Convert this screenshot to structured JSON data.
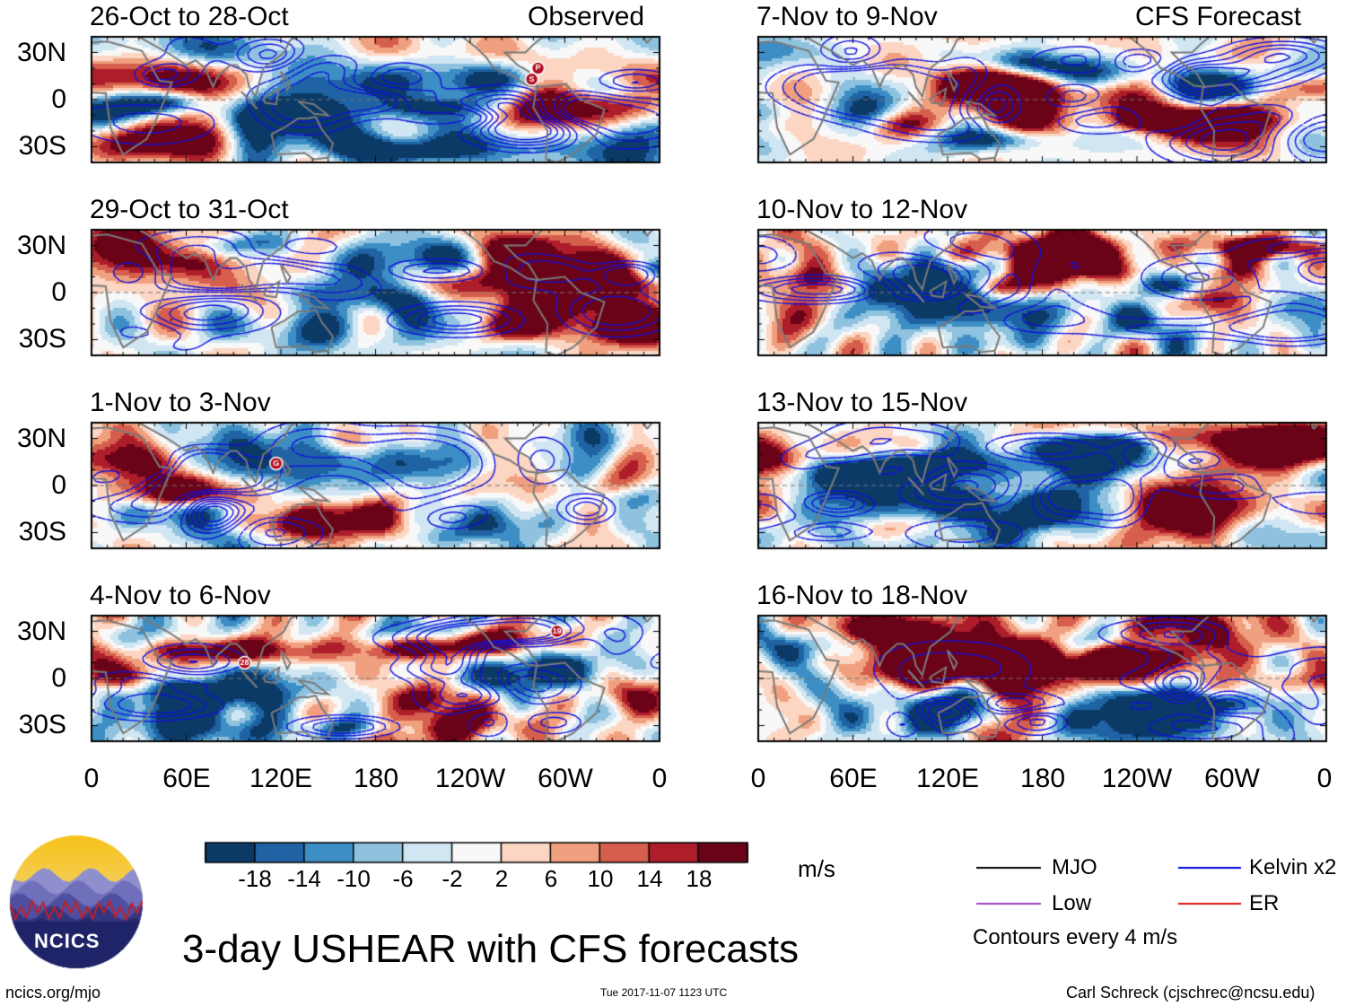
{
  "chart_data": {
    "type": "heatmap",
    "title": "3-day USHEAR with CFS forecasts",
    "variable": "USHEAR",
    "units": "m/s",
    "contour_interval_text": "Contours every 4 m/s",
    "x_ticks": [
      "0",
      "60E",
      "120E",
      "180",
      "120W",
      "60W",
      "0"
    ],
    "y_ticks": [
      "30N",
      "0",
      "30S"
    ],
    "lat_range": [
      -40,
      40
    ],
    "lon_range": [
      0,
      360
    ],
    "colorbar": {
      "levels": [
        "-18",
        "-14",
        "-10",
        "-6",
        "-2",
        "2",
        "6",
        "10",
        "14",
        "18"
      ],
      "colors": [
        "#0b3a67",
        "#1f63a4",
        "#3c8ec4",
        "#8fc2df",
        "#d0e6f2",
        "#f8f8f8",
        "#fcd6c3",
        "#f0a07e",
        "#d65e4d",
        "#ad1d2a",
        "#6b0318"
      ]
    },
    "legend": [
      {
        "label": "MJO",
        "color": "#000000"
      },
      {
        "label": "Low",
        "color": "#a040c0"
      },
      {
        "label": "Kelvin x2",
        "color": "#0000e0"
      },
      {
        "label": "ER",
        "color": "#e01010"
      }
    ],
    "panels": [
      {
        "title": "26-Oct to 28-Oct",
        "tag": "Observed",
        "column": "left",
        "row": 0,
        "seed": 11
      },
      {
        "title": "29-Oct to 31-Oct",
        "tag": "",
        "column": "left",
        "row": 1,
        "seed": 23
      },
      {
        "title": "1-Nov to 3-Nov",
        "tag": "",
        "column": "left",
        "row": 2,
        "seed": 37
      },
      {
        "title": "4-Nov to 6-Nov",
        "tag": "",
        "column": "left",
        "row": 3,
        "seed": 41
      },
      {
        "title": "7-Nov to 9-Nov",
        "tag": "CFS Forecast",
        "column": "right",
        "row": 0,
        "seed": 53
      },
      {
        "title": "10-Nov to 12-Nov",
        "tag": "",
        "column": "right",
        "row": 1,
        "seed": 67
      },
      {
        "title": "13-Nov to 15-Nov",
        "tag": "",
        "column": "right",
        "row": 2,
        "seed": 71
      },
      {
        "title": "16-Nov to 18-Nov",
        "tag": "",
        "column": "right",
        "row": 3,
        "seed": 89
      }
    ],
    "storm_markers": [
      {
        "panel": 0,
        "lon": 283,
        "lat": 20,
        "label": "P"
      },
      {
        "panel": 0,
        "lon": 279,
        "lat": 13,
        "label": "S"
      },
      {
        "panel": 2,
        "lon": 117,
        "lat": 14,
        "label": "G"
      },
      {
        "panel": 3,
        "lon": 97,
        "lat": 10,
        "label": "28"
      },
      {
        "panel": 3,
        "lon": 295,
        "lat": 30,
        "label": "19"
      }
    ]
  },
  "branding": {
    "logo_text": "NCICS",
    "website": "ncics.org/mjo",
    "timestamp": "Tue 2017-11-07 1123 UTC",
    "credit": "Carl Schreck (cjschrec@ncsu.edu)"
  }
}
